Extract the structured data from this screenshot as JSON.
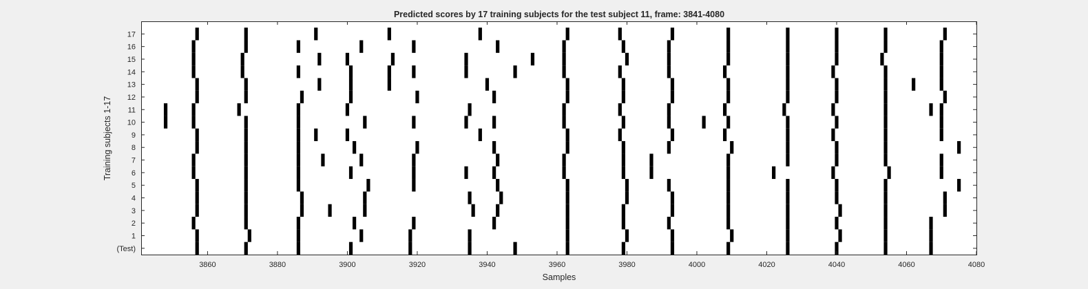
{
  "chart_data": {
    "type": "scatter",
    "title": "Predicted scores by 17 training subjects for the test subject 11, frame: 3841-4080",
    "xlabel": "Samples",
    "ylabel": "Training subjects 1-17",
    "xlim": [
      3841,
      4080
    ],
    "x_ticks": [
      3860,
      3880,
      3900,
      3920,
      3940,
      3960,
      3980,
      4000,
      4020,
      4040,
      4060,
      4080
    ],
    "y_tick_labels": [
      "(Test)",
      "1",
      "2",
      "3",
      "4",
      "5",
      "6",
      "7",
      "8",
      "9",
      "10",
      "11",
      "12",
      "13",
      "14",
      "15",
      "16",
      "17"
    ],
    "grid": false,
    "mark_color": "#000000",
    "background": "#ffffff",
    "rows": [
      {
        "label": "(Test)",
        "x": [
          3857,
          3871,
          3886,
          3901,
          3918,
          3935,
          3948,
          3963,
          3979,
          3993,
          4009,
          4026,
          4040,
          4054,
          4067
        ]
      },
      {
        "label": "1",
        "x": [
          3857,
          3872,
          3886,
          3904,
          3918,
          3935,
          3963,
          3980,
          3993,
          4010,
          4026,
          4041,
          4054,
          4067
        ]
      },
      {
        "label": "2",
        "x": [
          3856,
          3871,
          3886,
          3902,
          3919,
          3942,
          3963,
          3979,
          3992,
          4009,
          4026,
          4040,
          4054,
          4067
        ]
      },
      {
        "label": "3",
        "x": [
          3857,
          3871,
          3887,
          3895,
          3905,
          3936,
          3943,
          3963,
          3979,
          3993,
          4009,
          4026,
          4041,
          4054,
          4071
        ]
      },
      {
        "label": "4",
        "x": [
          3857,
          3871,
          3887,
          3905,
          3935,
          3944,
          3963,
          3980,
          3993,
          4009,
          4026,
          4040,
          4054,
          4071
        ]
      },
      {
        "label": "5",
        "x": [
          3857,
          3871,
          3886,
          3906,
          3919,
          3943,
          3963,
          3980,
          3992,
          4009,
          4026,
          4040,
          4054,
          4075
        ]
      },
      {
        "label": "6",
        "x": [
          3856,
          3871,
          3886,
          3901,
          3919,
          3934,
          3942,
          3962,
          3979,
          3987,
          4009,
          4022,
          4039,
          4055,
          4070
        ]
      },
      {
        "label": "7",
        "x": [
          3856,
          3871,
          3886,
          3893,
          3904,
          3919,
          3943,
          3962,
          3979,
          3987,
          4009,
          4026,
          4040,
          4054,
          4070
        ]
      },
      {
        "label": "8",
        "x": [
          3857,
          3871,
          3886,
          3902,
          3920,
          3942,
          3963,
          3979,
          3992,
          4010,
          4026,
          4040,
          4054,
          4075
        ]
      },
      {
        "label": "9",
        "x": [
          3857,
          3871,
          3886,
          3891,
          3900,
          3938,
          3963,
          3978,
          3993,
          4008,
          4026,
          4039,
          4054,
          4070
        ]
      },
      {
        "label": "10",
        "x": [
          3848,
          3856,
          3871,
          3886,
          3905,
          3919,
          3934,
          3942,
          3962,
          3979,
          3992,
          4002,
          4009,
          4026,
          4040,
          4054,
          4070
        ]
      },
      {
        "label": "11",
        "x": [
          3848,
          3856,
          3869,
          3886,
          3900,
          3935,
          3962,
          3978,
          3992,
          4008,
          4025,
          4039,
          4054,
          4067,
          4070
        ]
      },
      {
        "label": "12",
        "x": [
          3857,
          3871,
          3887,
          3901,
          3920,
          3942,
          3963,
          3979,
          3993,
          4009,
          4026,
          4040,
          4054,
          4071
        ]
      },
      {
        "label": "13",
        "x": [
          3857,
          3871,
          3892,
          3901,
          3912,
          3940,
          3963,
          3979,
          3993,
          4009,
          4026,
          4040,
          4054,
          4062,
          4070
        ]
      },
      {
        "label": "14",
        "x": [
          3856,
          3870,
          3886,
          3901,
          3912,
          3919,
          3934,
          3948,
          3962,
          3978,
          3992,
          4008,
          4026,
          4039,
          4054,
          4070
        ]
      },
      {
        "label": "15",
        "x": [
          3856,
          3870,
          3892,
          3900,
          3913,
          3934,
          3953,
          3962,
          3980,
          3992,
          4009,
          4026,
          4040,
          4053,
          4070
        ]
      },
      {
        "label": "16",
        "x": [
          3856,
          3871,
          3886,
          3904,
          3919,
          3943,
          3962,
          3979,
          3992,
          4009,
          4026,
          4040,
          4054,
          4070
        ]
      },
      {
        "label": "17",
        "x": [
          3857,
          3871,
          3891,
          3912,
          3938,
          3963,
          3978,
          3993,
          4009,
          4026,
          4040,
          4054,
          4071
        ]
      }
    ]
  }
}
